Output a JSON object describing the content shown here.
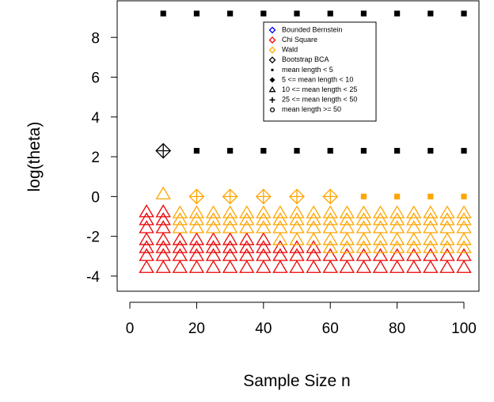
{
  "chart_data": {
    "type": "scatter",
    "xlabel": "Sample Size n",
    "ylabel": "log(theta)",
    "xlim": [
      -3.8,
      104.5
    ],
    "ylim": [
      -4.76,
      9.84
    ],
    "xticks": [
      0,
      20,
      40,
      60,
      80,
      100
    ],
    "yticks": [
      -4,
      -2,
      0,
      2,
      4,
      6,
      8
    ],
    "legend": [
      {
        "label": "Bounded Bernstein",
        "color": "#0000ee",
        "marker": "diamond"
      },
      {
        "label": "Chi Square",
        "color": "#ee0000",
        "marker": "diamond"
      },
      {
        "label": "Wald",
        "color": "#ffa500",
        "marker": "diamond"
      },
      {
        "label": "Bootstrap BCA",
        "color": "#000000",
        "marker": "diamond"
      },
      {
        "label": "mean length < 5",
        "color": "#000000",
        "marker": "square"
      },
      {
        "label": "5 <= mean length < 10",
        "color": "#000000",
        "marker": "diamond-filled"
      },
      {
        "label": "10 <= mean length < 25",
        "color": "#000000",
        "marker": "triangle"
      },
      {
        "label": "25 <= mean length < 50",
        "color": "#000000",
        "marker": "plus"
      },
      {
        "label": "mean length >= 50",
        "color": "#000000",
        "marker": "circle"
      }
    ],
    "series": [
      {
        "color": "#000000",
        "marker": "square",
        "x": [
          10,
          20,
          30,
          40,
          50,
          60,
          70,
          80,
          90,
          100
        ],
        "values": [
          9.2,
          9.2,
          9.2,
          9.2,
          9.2,
          9.2,
          9.2,
          9.2,
          9.2,
          9.2
        ]
      },
      {
        "color": "#000000",
        "marker": "square",
        "x": [
          20,
          30,
          40,
          50,
          60,
          70,
          80,
          90,
          100
        ],
        "values": [
          2.3,
          2.3,
          2.3,
          2.3,
          2.3,
          2.3,
          2.3,
          2.3,
          2.3
        ]
      },
      {
        "color": "#000000",
        "marker": "diamond-plus",
        "x": [
          10
        ],
        "values": [
          2.3
        ]
      },
      {
        "color": "#ffa500",
        "marker": "square",
        "x": [
          70,
          80,
          90,
          100
        ],
        "values": [
          0,
          0,
          0,
          0
        ]
      },
      {
        "color": "#ffa500",
        "marker": "diamond-plus",
        "x": [
          20,
          30,
          40,
          50,
          60
        ],
        "values": [
          0,
          0,
          0,
          0,
          0
        ]
      },
      {
        "color": "#ffa500",
        "marker": "triangle",
        "x": [
          10
        ],
        "values": [
          0.1
        ]
      },
      {
        "color": "#ee0000",
        "marker": "triangle",
        "x": [
          5,
          10,
          15,
          20,
          25,
          30,
          35,
          40,
          45,
          50,
          55,
          60,
          65,
          70,
          75,
          80,
          85,
          90,
          95,
          100
        ],
        "values": [
          -3.6,
          -3.6,
          -3.6,
          -3.6,
          -3.6,
          -3.6,
          -3.6,
          -3.6,
          -3.6,
          -3.6,
          -3.6,
          -3.6,
          -3.6,
          -3.6,
          -3.6,
          -3.6,
          -3.6,
          -3.6,
          -3.6,
          -3.6
        ]
      },
      {
        "color": "#ee0000",
        "marker": "triangle",
        "x": [
          5,
          10,
          15,
          20,
          25,
          30,
          35,
          40,
          45,
          50,
          55,
          60,
          65,
          70,
          75,
          80,
          85,
          90,
          95,
          100
        ],
        "values": [
          -3,
          -3,
          -3,
          -3,
          -3,
          -3,
          -3,
          -3,
          -3,
          -3,
          -3,
          -3,
          -3,
          -3,
          -3,
          -3,
          -3,
          -3,
          -3,
          -3
        ]
      },
      {
        "color": "#ee0000",
        "marker": "triangle",
        "x": [
          5,
          10,
          15,
          20,
          25,
          30,
          35,
          40,
          45,
          50,
          55
        ],
        "values": [
          -2.6,
          -2.6,
          -2.6,
          -2.6,
          -2.6,
          -2.6,
          -2.6,
          -2.6,
          -2.6,
          -2.6,
          -2.6
        ]
      },
      {
        "color": "#ee0000",
        "marker": "triangle",
        "x": [
          5,
          10,
          15,
          20,
          25,
          30,
          35,
          40
        ],
        "values": [
          -2.2,
          -2.2,
          -2.2,
          -2.2,
          -2.2,
          -2.2,
          -2.2,
          -2.2
        ]
      },
      {
        "color": "#ee0000",
        "marker": "triangle",
        "x": [
          5,
          10
        ],
        "values": [
          -1.6,
          -1.6
        ]
      },
      {
        "color": "#ee0000",
        "marker": "triangle",
        "x": [
          5,
          10
        ],
        "values": [
          -1.2,
          -1.2
        ]
      },
      {
        "color": "#ee0000",
        "marker": "triangle",
        "x": [
          5,
          10
        ],
        "values": [
          -0.8,
          -0.8
        ]
      },
      {
        "color": "#ffa500",
        "marker": "triangle",
        "x": [
          60,
          65,
          70,
          75,
          80,
          85,
          90,
          95,
          100
        ],
        "values": [
          -2.6,
          -2.6,
          -2.6,
          -2.6,
          -2.6,
          -2.6,
          -2.6,
          -2.6,
          -2.6
        ]
      },
      {
        "color": "#ffa500",
        "marker": "triangle",
        "x": [
          45,
          50,
          55,
          60,
          65,
          70,
          75,
          80,
          85,
          90,
          95,
          100
        ],
        "values": [
          -2.2,
          -2.2,
          -2.2,
          -2.2,
          -2.2,
          -2.2,
          -2.2,
          -2.2,
          -2.2,
          -2.2,
          -2.2,
          -2.2
        ]
      },
      {
        "color": "#ffa500",
        "marker": "triangle",
        "x": [
          15,
          20,
          25,
          30,
          35,
          40,
          45,
          50,
          55,
          60,
          65,
          70,
          75,
          80,
          85,
          90,
          95,
          100
        ],
        "values": [
          -1.6,
          -1.6,
          -1.6,
          -1.6,
          -1.6,
          -1.6,
          -1.6,
          -1.6,
          -1.6,
          -1.6,
          -1.6,
          -1.6,
          -1.6,
          -1.6,
          -1.6,
          -1.6,
          -1.6,
          -1.6
        ]
      },
      {
        "color": "#ffa500",
        "marker": "triangle",
        "x": [
          15,
          20,
          25,
          30,
          35,
          40,
          45,
          50,
          55,
          60,
          65,
          70,
          75,
          80,
          85,
          90,
          95,
          100
        ],
        "values": [
          -1.2,
          -1.2,
          -1.2,
          -1.2,
          -1.2,
          -1.2,
          -1.2,
          -1.2,
          -1.2,
          -1.2,
          -1.2,
          -1.2,
          -1.2,
          -1.2,
          -1.2,
          -1.2,
          -1.2,
          -1.2
        ]
      },
      {
        "color": "#ffa500",
        "marker": "triangle",
        "x": [
          15,
          20,
          25,
          30,
          35,
          40,
          45,
          50,
          55,
          60,
          65,
          70,
          75,
          80,
          85,
          90,
          95,
          100
        ],
        "values": [
          -0.85,
          -0.85,
          -0.85,
          -0.85,
          -0.85,
          -0.85,
          -0.85,
          -0.85,
          -0.85,
          -0.85,
          -0.85,
          -0.85,
          -0.85,
          -0.85,
          -0.85,
          -0.85,
          -0.85,
          -0.85
        ]
      }
    ]
  }
}
